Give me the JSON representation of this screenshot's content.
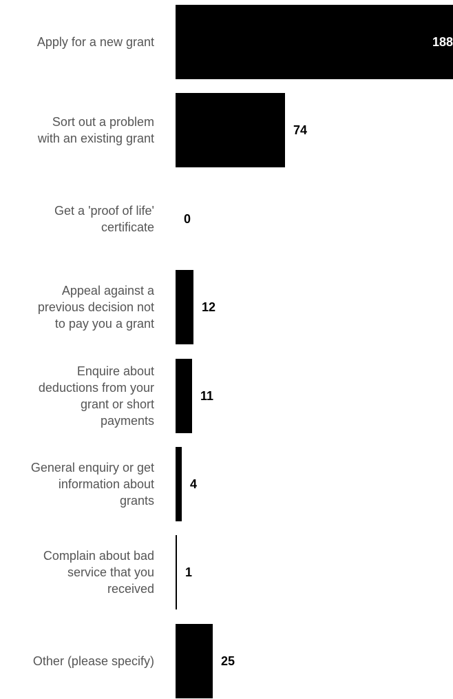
{
  "chart_data": {
    "type": "bar",
    "orientation": "horizontal",
    "categories": [
      "Apply for a new grant",
      "Sort out a problem with an existing grant",
      "Get a 'proof of life' certificate",
      "Appeal against a previous decision not to pay you a grant",
      "Enquire about deductions from your grant or short payments",
      "General enquiry or get information about grants",
      "Complain about bad service that you received",
      "Other (please specify)"
    ],
    "label_lines": [
      [
        "Apply for a new grant"
      ],
      [
        "Sort out a problem",
        "with an existing grant"
      ],
      [
        "Get a 'proof of life'",
        "certificate"
      ],
      [
        "Appeal against a",
        "previous decision not",
        "to pay you a grant"
      ],
      [
        "Enquire about",
        "deductions from your",
        "grant or short",
        "payments"
      ],
      [
        "General enquiry or get",
        "information about",
        "grants"
      ],
      [
        "Complain about bad",
        "service that you",
        "received"
      ],
      [
        "Other (please specify)"
      ]
    ],
    "values": [
      188,
      74,
      0,
      12,
      11,
      4,
      1,
      25
    ],
    "xlim": [
      0,
      188
    ],
    "grid": false,
    "legend": "none",
    "bar_color": "#000000",
    "label_color": "#555555",
    "value_label_color": "#000000"
  }
}
